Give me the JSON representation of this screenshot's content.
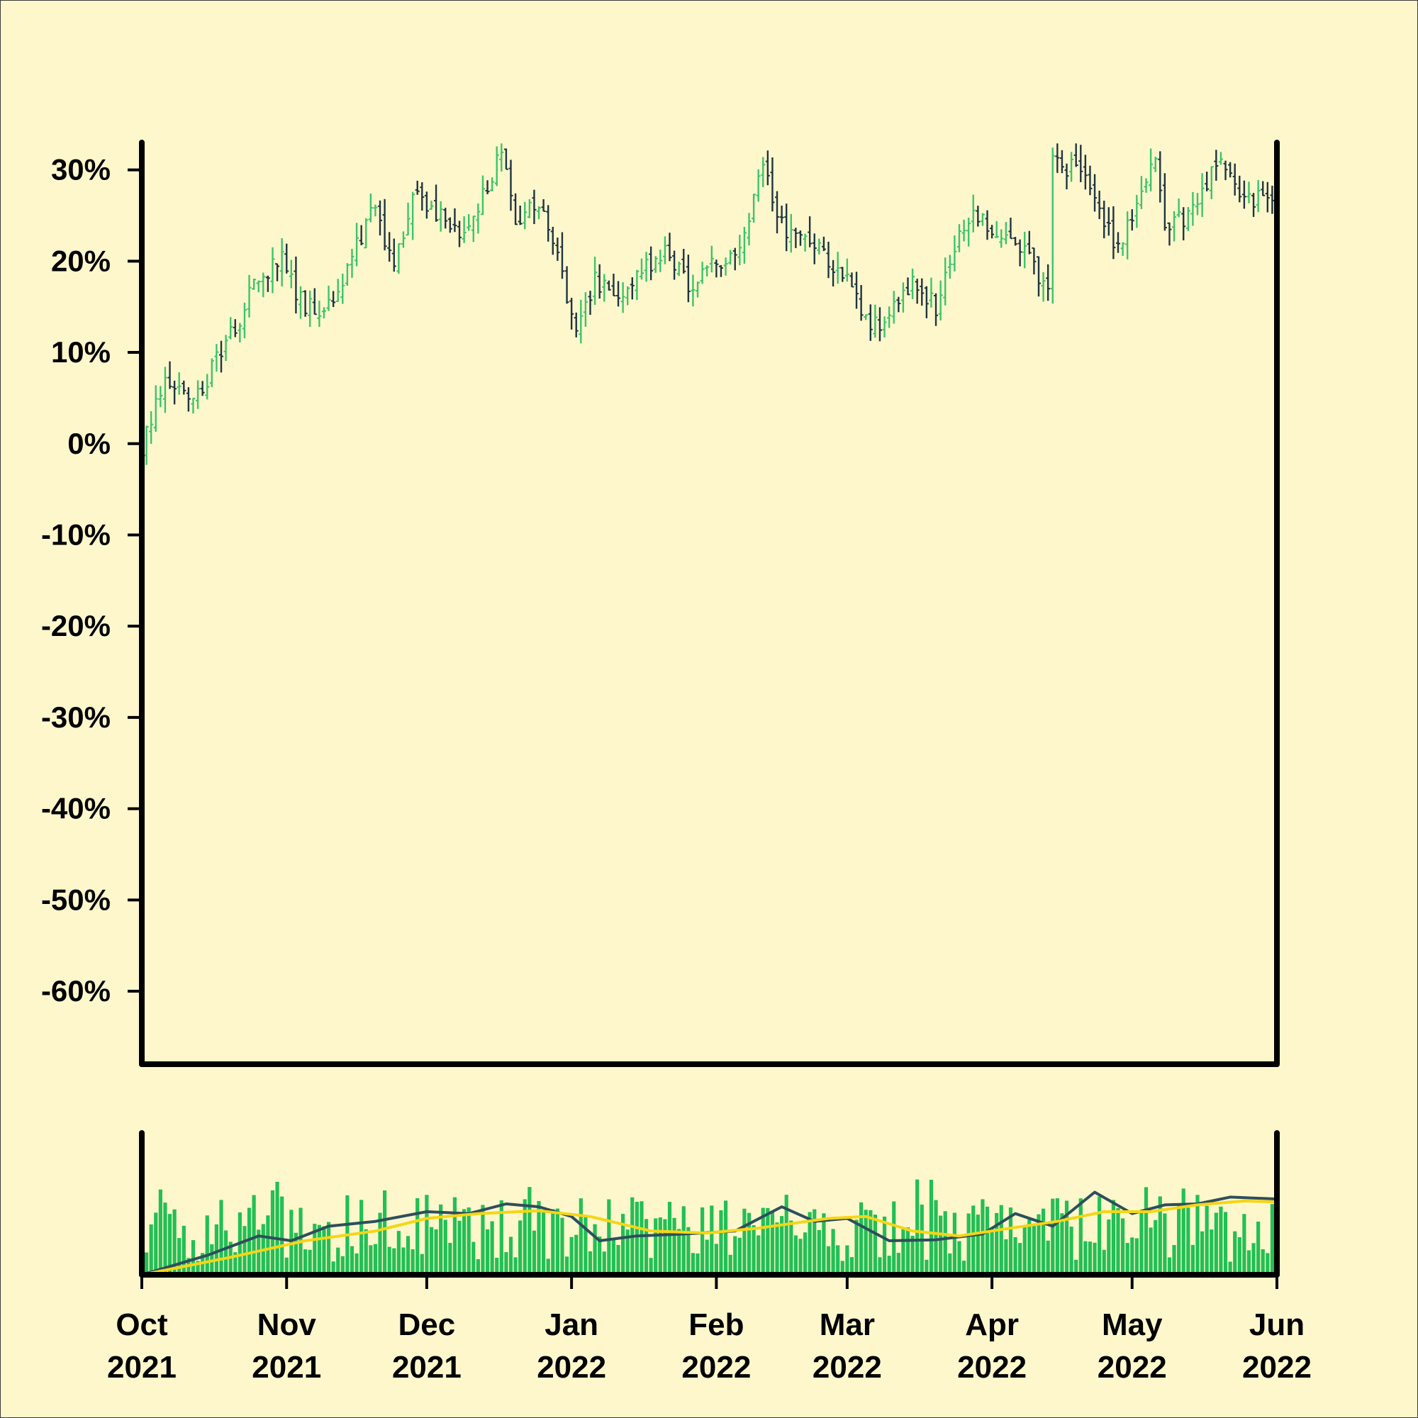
{
  "chart_data": [
    {
      "type": "ohlc",
      "panel": "price",
      "y_unit": "percent change",
      "ylim": [
        -68,
        33
      ],
      "yticks": [
        30,
        20,
        10,
        0,
        -10,
        -20,
        -30,
        -40,
        -50,
        -60
      ],
      "ytick_labels": [
        "30%",
        "20%",
        "10%",
        "0%",
        "-10%",
        "-20%",
        "-30%",
        "-40%",
        "-50%",
        "-60%"
      ],
      "xlim": [
        "2021-10-01",
        "2022-06-01"
      ],
      "up_color": "#3CC46A",
      "down_color": "#1F3440",
      "close_path": [
        [
          "2021-10-01",
          0
        ],
        [
          "2021-10-06",
          7
        ],
        [
          "2021-10-12",
          4
        ],
        [
          "2021-10-20",
          12
        ],
        [
          "2021-10-26",
          18
        ],
        [
          "2021-10-31",
          21
        ],
        [
          "2021-11-03",
          16
        ],
        [
          "2021-11-08",
          14
        ],
        [
          "2021-11-13",
          17
        ],
        [
          "2021-11-19",
          26
        ],
        [
          "2021-11-24",
          20
        ],
        [
          "2021-11-29",
          28
        ],
        [
          "2021-12-03",
          25
        ],
        [
          "2021-12-08",
          23
        ],
        [
          "2021-12-13",
          27
        ],
        [
          "2021-12-17",
          32
        ],
        [
          "2021-12-20",
          25
        ],
        [
          "2021-12-25",
          26
        ],
        [
          "2021-12-29",
          20
        ],
        [
          "2022-01-02",
          13
        ],
        [
          "2022-01-06",
          18
        ],
        [
          "2022-01-10",
          16
        ],
        [
          "2022-01-15",
          19
        ],
        [
          "2022-01-21",
          21
        ],
        [
          "2022-01-27",
          17
        ],
        [
          "2022-02-01",
          20
        ],
        [
          "2022-02-06",
          21
        ],
        [
          "2022-02-11",
          31
        ],
        [
          "2022-02-14",
          25
        ],
        [
          "2022-02-18",
          22
        ],
        [
          "2022-02-24",
          21
        ],
        [
          "2022-03-01",
          18
        ],
        [
          "2022-03-06",
          13
        ],
        [
          "2022-03-10",
          14
        ],
        [
          "2022-03-15",
          18
        ],
        [
          "2022-03-20",
          15
        ],
        [
          "2022-03-25",
          23
        ],
        [
          "2022-03-29",
          25
        ],
        [
          "2022-04-04",
          23
        ],
        [
          "2022-04-10",
          20
        ],
        [
          "2022-04-13",
          16
        ],
        [
          "2022-04-14",
          31
        ],
        [
          "2022-04-19",
          30
        ],
        [
          "2022-04-24",
          26
        ],
        [
          "2022-04-28",
          21
        ],
        [
          "2022-05-03",
          27
        ],
        [
          "2022-05-06",
          31
        ],
        [
          "2022-05-08",
          24
        ],
        [
          "2022-05-13",
          25
        ],
        [
          "2022-05-17",
          29
        ],
        [
          "2022-05-21",
          31
        ],
        [
          "2022-05-25",
          26
        ],
        [
          "2022-05-30",
          28
        ],
        [
          "2022-06-01",
          27
        ]
      ]
    },
    {
      "type": "bar+line",
      "panel": "volume",
      "bar_color": "#22BF55",
      "series": [
        {
          "color": "#2E4E5C",
          "points": [
            [
              "2021-10-01",
              0.0
            ],
            [
              "2021-10-15",
              0.2
            ],
            [
              "2021-10-26",
              0.4
            ],
            [
              "2021-11-02",
              0.35
            ],
            [
              "2021-11-10",
              0.5
            ],
            [
              "2021-11-20",
              0.55
            ],
            [
              "2021-12-01",
              0.65
            ],
            [
              "2021-12-10",
              0.63
            ],
            [
              "2021-12-18",
              0.73
            ],
            [
              "2021-12-25",
              0.7
            ],
            [
              "2022-01-01",
              0.6
            ],
            [
              "2022-01-07",
              0.35
            ],
            [
              "2022-01-15",
              0.4
            ],
            [
              "2022-01-25",
              0.42
            ],
            [
              "2022-02-05",
              0.45
            ],
            [
              "2022-02-15",
              0.7
            ],
            [
              "2022-02-22",
              0.55
            ],
            [
              "2022-03-01",
              0.58
            ],
            [
              "2022-03-10",
              0.35
            ],
            [
              "2022-03-20",
              0.36
            ],
            [
              "2022-03-30",
              0.42
            ],
            [
              "2022-04-06",
              0.63
            ],
            [
              "2022-04-14",
              0.5
            ],
            [
              "2022-04-23",
              0.85
            ],
            [
              "2022-05-01",
              0.63
            ],
            [
              "2022-05-08",
              0.72
            ],
            [
              "2022-05-15",
              0.73
            ],
            [
              "2022-05-22",
              0.8
            ],
            [
              "2022-06-01",
              0.78
            ]
          ]
        },
        {
          "color": "#F6D515",
          "points": [
            [
              "2021-10-01",
              0.0
            ],
            [
              "2021-10-20",
              0.18
            ],
            [
              "2021-11-05",
              0.35
            ],
            [
              "2021-11-20",
              0.45
            ],
            [
              "2021-12-01",
              0.58
            ],
            [
              "2021-12-12",
              0.63
            ],
            [
              "2021-12-25",
              0.66
            ],
            [
              "2022-01-05",
              0.6
            ],
            [
              "2022-01-18",
              0.45
            ],
            [
              "2022-01-30",
              0.43
            ],
            [
              "2022-02-10",
              0.48
            ],
            [
              "2022-02-25",
              0.58
            ],
            [
              "2022-03-05",
              0.6
            ],
            [
              "2022-03-15",
              0.45
            ],
            [
              "2022-03-25",
              0.4
            ],
            [
              "2022-04-05",
              0.48
            ],
            [
              "2022-04-15",
              0.55
            ],
            [
              "2022-04-25",
              0.65
            ],
            [
              "2022-05-05",
              0.65
            ],
            [
              "2022-05-15",
              0.72
            ],
            [
              "2022-05-25",
              0.76
            ],
            [
              "2022-06-01",
              0.75
            ]
          ]
        }
      ]
    }
  ],
  "x_axis": {
    "ticks": [
      {
        "date": "2021-10-01",
        "month": "Oct",
        "year": "2021"
      },
      {
        "date": "2021-11-01",
        "month": "Nov",
        "year": "2021"
      },
      {
        "date": "2021-12-01",
        "month": "Dec",
        "year": "2021"
      },
      {
        "date": "2022-01-01",
        "month": "Jan",
        "year": "2022"
      },
      {
        "date": "2022-02-01",
        "month": "Feb",
        "year": "2022"
      },
      {
        "date": "2022-03-01",
        "month": "Mar",
        "year": "2022"
      },
      {
        "date": "2022-04-01",
        "month": "Apr",
        "year": "2022"
      },
      {
        "date": "2022-05-01",
        "month": "May",
        "year": "2022"
      },
      {
        "date": "2022-06-01",
        "month": "Jun",
        "year": "2022"
      }
    ]
  },
  "colors": {
    "background": "#FFF7CC",
    "frame": "#000000"
  }
}
